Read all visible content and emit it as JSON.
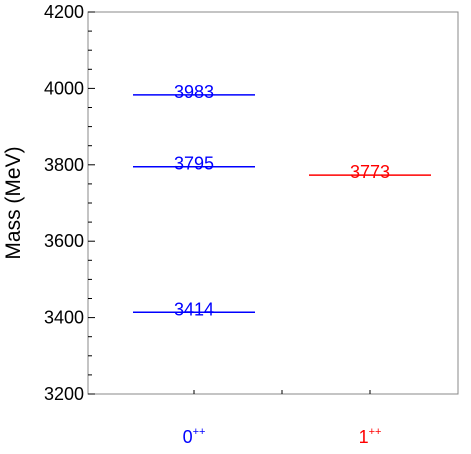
{
  "chart_data": {
    "type": "level-diagram",
    "ylabel": "Mass (MeV)",
    "ylim": [
      3200,
      4200
    ],
    "yticks": [
      3200,
      3400,
      3600,
      3800,
      4000,
      4200
    ],
    "yticks_minor_step": 50,
    "grid": false,
    "categories": [
      {
        "base": "0",
        "sup": "++",
        "color": "#0000ff"
      },
      {
        "base": "1",
        "sup": "++",
        "color": "#ff0000"
      }
    ],
    "levels": [
      {
        "category": 0,
        "value": 3983,
        "label": "3983"
      },
      {
        "category": 0,
        "value": 3795,
        "label": "3795"
      },
      {
        "category": 0,
        "value": 3414,
        "label": "3414"
      },
      {
        "category": 1,
        "value": 3773,
        "label": "3773"
      }
    ]
  }
}
